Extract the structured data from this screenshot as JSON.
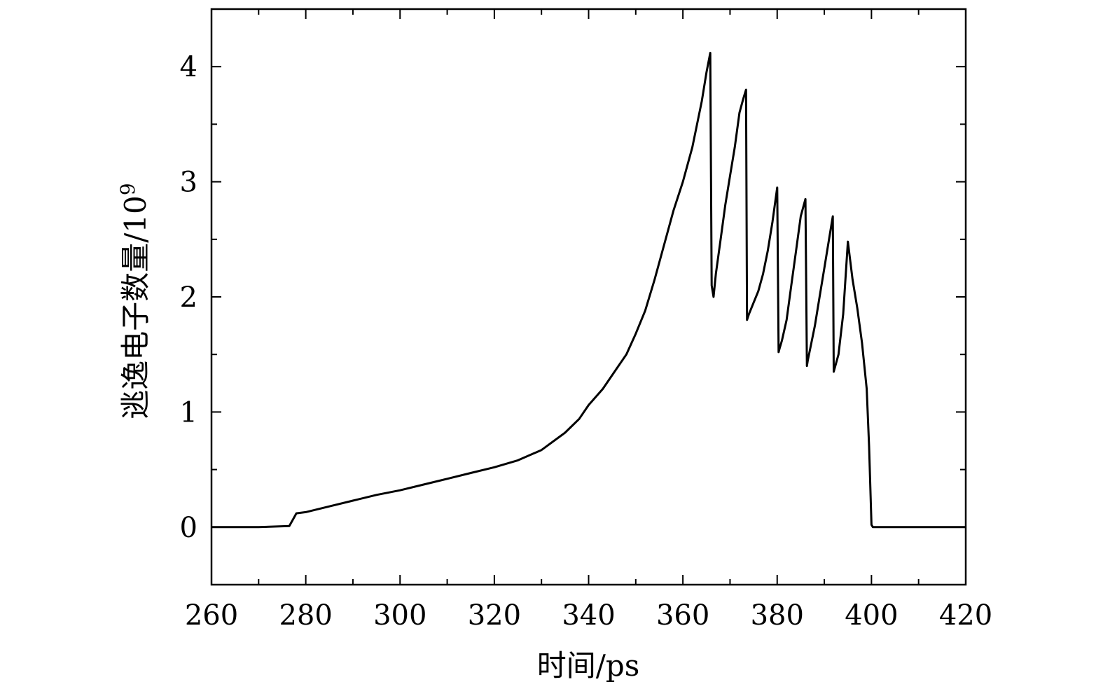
{
  "chart_data": {
    "type": "line",
    "title": "",
    "xlabel": "时间/ps",
    "ylabel": "逃逸电子数量/10",
    "ylabel_superscript": "9",
    "xlim": [
      260,
      420
    ],
    "ylim": [
      -0.5,
      4.5
    ],
    "x_ticks": [
      260,
      280,
      300,
      320,
      340,
      360,
      380,
      400,
      420
    ],
    "x_tick_labels": [
      "260",
      "280",
      "300",
      "320",
      "340",
      "360",
      "380",
      "400",
      "420"
    ],
    "y_ticks": [
      0,
      1,
      2,
      3,
      4
    ],
    "y_tick_labels": [
      "0",
      "1",
      "2",
      "3",
      "4"
    ],
    "grid": false,
    "legend": "none",
    "series": [
      {
        "color": "#000000",
        "x": [
          260,
          270,
          276.5,
          277.2,
          278,
          280,
          285,
          290,
          295,
          300,
          305,
          310,
          315,
          320,
          325,
          330,
          335,
          338,
          340,
          343,
          346,
          348,
          350,
          352,
          354,
          356,
          358,
          360,
          362,
          364,
          365,
          365.8,
          366.1,
          366.5,
          367,
          368,
          369,
          370,
          371,
          372,
          372.8,
          373.4,
          373.6,
          374,
          375,
          376,
          377,
          378,
          379,
          380,
          380.3,
          380.5,
          381,
          382,
          383,
          384,
          385,
          386,
          386.3,
          386.5,
          387,
          388,
          389,
          390,
          391,
          391.8,
          392,
          393,
          394,
          395,
          396,
          397,
          398,
          399,
          399.5,
          400,
          400.3,
          410,
          420
        ],
        "y": [
          0,
          0,
          0.01,
          0.06,
          0.12,
          0.13,
          0.18,
          0.23,
          0.28,
          0.32,
          0.37,
          0.42,
          0.47,
          0.52,
          0.58,
          0.67,
          0.82,
          0.94,
          1.06,
          1.2,
          1.38,
          1.5,
          1.68,
          1.88,
          2.15,
          2.45,
          2.75,
          3.0,
          3.3,
          3.7,
          3.95,
          4.12,
          2.1,
          2.0,
          2.2,
          2.5,
          2.8,
          3.05,
          3.3,
          3.6,
          3.72,
          3.8,
          1.8,
          1.85,
          1.95,
          2.05,
          2.2,
          2.4,
          2.65,
          2.95,
          1.52,
          1.55,
          1.62,
          1.8,
          2.1,
          2.4,
          2.7,
          2.85,
          1.4,
          1.45,
          1.55,
          1.75,
          2.0,
          2.25,
          2.5,
          2.7,
          1.35,
          1.5,
          1.85,
          2.48,
          2.15,
          1.9,
          1.6,
          1.2,
          0.7,
          0.02,
          0,
          0,
          0
        ]
      }
    ]
  }
}
